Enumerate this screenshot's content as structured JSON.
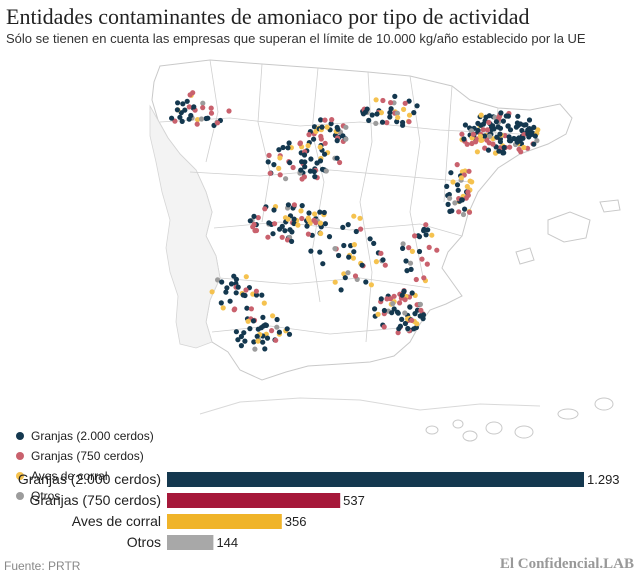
{
  "title": "Entidades contaminantes de amoniaco por tipo de actividad",
  "subtitle": "Sólo se tienen en cuenta las empresas que superan el límite de 10.000 kg/año establecido por la UE",
  "legend": [
    {
      "label": "Granjas (2.000 cerdos)",
      "color": "#14384f"
    },
    {
      "label": "Granjas (750 cerdos)",
      "color": "#c9616d"
    },
    {
      "label": "Aves de corral",
      "color": "#f5c24f"
    },
    {
      "label": "Otros",
      "color": "#9c9c9c"
    }
  ],
  "chart_data": {
    "type": "bar",
    "orientation": "horizontal",
    "categories": [
      "Granjas (2.000 cerdos)",
      "Granjas (750 cerdos)",
      "Aves de corral",
      "Otros"
    ],
    "values": [
      1293,
      537,
      356,
      144
    ],
    "value_labels": [
      "1.293",
      "537",
      "356",
      "144"
    ],
    "colors": [
      "#14384f",
      "#a6183a",
      "#f0b429",
      "#a8a8a8"
    ]
  },
  "footer": {
    "source": "Fuente: PRTR",
    "brand": "El Confidencial.LAB"
  }
}
